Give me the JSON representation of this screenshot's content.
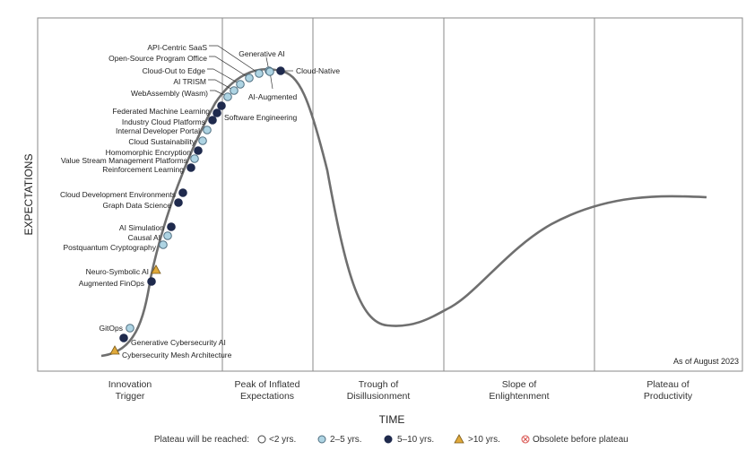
{
  "axes": {
    "y_label": "EXPECTATIONS",
    "x_label": "TIME"
  },
  "phases": [
    [
      "Innovation",
      "Trigger"
    ],
    [
      "Peak of Inflated",
      "Expectations"
    ],
    [
      "Trough of",
      "Disillusionment"
    ],
    [
      "Slope of",
      "Enlightenment"
    ],
    [
      "Plateau of",
      "Productivity"
    ]
  ],
  "as_of": "As of August 2023",
  "legend": {
    "title": "Plateau will be reached:",
    "items": [
      "<2 yrs.",
      "2–5 yrs.",
      "5–10 yrs.",
      ">10 yrs.",
      "Obsolete before plateau"
    ]
  },
  "colors": {
    "lt2": "#ffffff",
    "2to5": "#aed4e3",
    "5to10": "#1f2a4d",
    "gt10": "#e0a93a",
    "obsolete": "#d9534f",
    "curve": "#6f6f6f"
  },
  "technologies": [
    {
      "name": "Cybersecurity Mesh Architecture",
      "category": ">10 yrs."
    },
    {
      "name": "Generative Cybersecurity AI",
      "category": "5–10 yrs."
    },
    {
      "name": "GitOps",
      "category": "2–5 yrs."
    },
    {
      "name": "Augmented FinOps",
      "category": "5–10 yrs."
    },
    {
      "name": "Neuro-Symbolic AI",
      "category": ">10 yrs."
    },
    {
      "name": "Postquantum Cryptography",
      "category": "2–5 yrs."
    },
    {
      "name": "Causal AI",
      "category": "2–5 yrs."
    },
    {
      "name": "AI Simulation",
      "category": "5–10 yrs."
    },
    {
      "name": "Graph Data Science",
      "category": "5–10 yrs."
    },
    {
      "name": "Cloud Development Environments",
      "category": "5–10 yrs."
    },
    {
      "name": "Reinforcement Learning",
      "category": "5–10 yrs."
    },
    {
      "name": "Value Stream Management Platforms",
      "category": "2–5 yrs."
    },
    {
      "name": "Homomorphic Encryption",
      "category": "5–10 yrs."
    },
    {
      "name": "Cloud Sustainability",
      "category": "2–5 yrs."
    },
    {
      "name": "Internal Developer Portal",
      "category": "2–5 yrs."
    },
    {
      "name": "Industry Cloud Platforms",
      "category": "5–10 yrs."
    },
    {
      "name": "Federated Machine Learning",
      "category": "5–10 yrs."
    },
    {
      "name": "Software Engineering",
      "category": "5–10 yrs."
    },
    {
      "name": "WebAssembly (Wasm)",
      "category": "2–5 yrs."
    },
    {
      "name": "AI TRISM",
      "category": "2–5 yrs."
    },
    {
      "name": "Cloud-Out to Edge",
      "category": "2–5 yrs."
    },
    {
      "name": "Open-Source Program Office",
      "category": "2–5 yrs."
    },
    {
      "name": "API-Centric SaaS",
      "category": "2–5 yrs."
    },
    {
      "name": "Generative AI",
      "category": "2–5 yrs."
    },
    {
      "name": "AI-Augmented",
      "category": "2–5 yrs."
    },
    {
      "name": "Cloud-Native",
      "category": "5–10 yrs."
    }
  ]
}
